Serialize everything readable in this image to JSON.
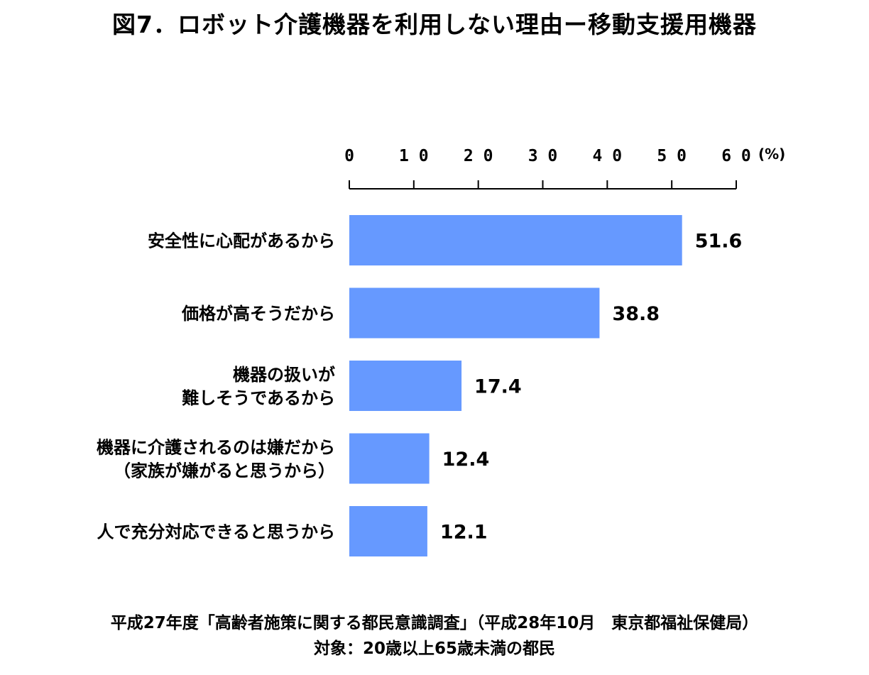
{
  "chart_data": {
    "type": "bar",
    "orientation": "horizontal",
    "title": "図7．ロボット介護機器を利用しない理由ー移動支援用機器",
    "unit": "(%)",
    "xlim": [
      0,
      60
    ],
    "ticks": [
      "0",
      "10",
      "20",
      "30",
      "40",
      "50",
      "60"
    ],
    "tick_values": [
      0,
      10,
      20,
      30,
      40,
      50,
      60
    ],
    "axis_position": "top",
    "grid": false,
    "categories": [
      [
        "安全性に心配があるから"
      ],
      [
        "価格が高そうだから"
      ],
      [
        "機器の扱いが",
        "難しそうであるから"
      ],
      [
        "機器に介護されるのは嫌だから",
        "（家族が嫌がると思うから）"
      ],
      [
        "人で充分対応できると思うから"
      ]
    ],
    "values": [
      51.6,
      38.8,
      17.4,
      12.4,
      12.1
    ],
    "value_labels": [
      "51.6",
      "38.8",
      "17.4",
      "12.4",
      "12.1"
    ],
    "bar_color": "#6699ff"
  },
  "footer": {
    "source": "平成27年度「高齢者施策に関する都民意識調査」（平成28年10月　東京都福祉保健局）",
    "target": "対象：20歳以上65歳未満の都民"
  }
}
